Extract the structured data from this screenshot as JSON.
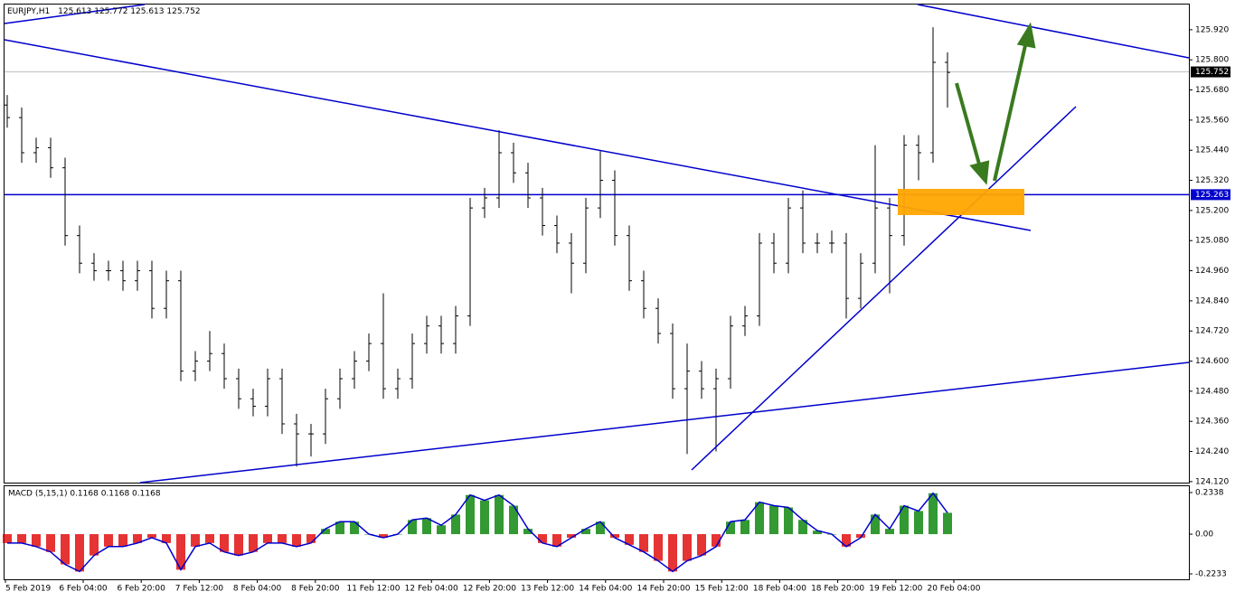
{
  "chart_data": [
    {
      "type": "ohlc",
      "title": "EURJPY,H1",
      "quote": "125.613 125.772 125.613 125.752",
      "categories": [
        "5 Feb 2019",
        "6 Feb 04:00",
        "6 Feb 20:00",
        "7 Feb 12:00",
        "8 Feb 04:00",
        "8 Feb 20:00",
        "11 Feb 12:00",
        "12 Feb 04:00",
        "12 Feb 20:00",
        "13 Feb 12:00",
        "14 Feb 04:00",
        "14 Feb 20:00",
        "15 Feb 12:00",
        "18 Feb 04:00",
        "18 Feb 20:00",
        "19 Feb 12:00",
        "20 Feb 04:00"
      ],
      "open": [
        125.62,
        125.57,
        125.43,
        125.45,
        125.37,
        125.1,
        124.99,
        124.96,
        124.96,
        124.92,
        124.96,
        124.81,
        124.92,
        124.56,
        124.6,
        124.63,
        124.53,
        124.45,
        124.42,
        124.53,
        124.35,
        124.31,
        124.31,
        124.45,
        124.53,
        124.6,
        124.67,
        124.49,
        124.53,
        124.67,
        124.74,
        124.67,
        124.78,
        125.21,
        125.25,
        125.43,
        125.35,
        125.25,
        125.14,
        125.07,
        124.99,
        125.21,
        125.32,
        125.1,
        124.92,
        124.81,
        124.71,
        124.49,
        124.56,
        124.49,
        124.53,
        124.74,
        124.78,
        125.07,
        124.99,
        125.21,
        125.07,
        125.07,
        125.07,
        124.85,
        124.99,
        125.21,
        125.1,
        125.46,
        125.43,
        125.79
      ],
      "high": [
        125.66,
        125.61,
        125.49,
        125.49,
        125.41,
        125.14,
        125.03,
        125.0,
        125.0,
        125.0,
        125.0,
        124.96,
        124.96,
        124.64,
        124.72,
        124.67,
        124.57,
        124.49,
        124.57,
        124.57,
        124.39,
        124.35,
        124.49,
        124.57,
        124.64,
        124.71,
        124.87,
        124.57,
        124.71,
        124.78,
        124.78,
        124.82,
        125.25,
        125.29,
        125.52,
        125.47,
        125.39,
        125.29,
        125.18,
        125.11,
        125.25,
        125.44,
        125.36,
        125.14,
        124.96,
        124.85,
        124.75,
        124.67,
        124.6,
        124.57,
        124.78,
        124.82,
        125.11,
        125.11,
        125.25,
        125.28,
        125.11,
        125.12,
        125.11,
        125.03,
        125.46,
        125.25,
        125.5,
        125.5,
        125.93,
        125.83
      ],
      "low": [
        125.53,
        125.39,
        125.39,
        125.33,
        125.06,
        124.95,
        124.92,
        124.92,
        124.88,
        124.88,
        124.77,
        124.77,
        124.52,
        124.52,
        124.56,
        124.49,
        124.41,
        124.38,
        124.38,
        124.31,
        124.18,
        124.22,
        124.27,
        124.41,
        124.49,
        124.56,
        124.45,
        124.45,
        124.49,
        124.63,
        124.63,
        124.63,
        124.74,
        125.17,
        125.21,
        125.31,
        125.21,
        125.1,
        125.03,
        124.87,
        124.95,
        125.17,
        125.06,
        124.88,
        124.77,
        124.67,
        124.45,
        124.23,
        124.45,
        124.24,
        124.49,
        124.7,
        124.74,
        124.95,
        124.95,
        125.03,
        125.03,
        125.03,
        124.77,
        124.81,
        124.95,
        124.87,
        125.06,
        125.32,
        125.39,
        125.61
      ],
      "close": [
        125.57,
        125.43,
        125.45,
        125.37,
        125.1,
        124.99,
        124.96,
        124.96,
        124.92,
        124.96,
        124.81,
        124.92,
        124.56,
        124.6,
        124.63,
        124.53,
        124.45,
        124.42,
        124.53,
        124.35,
        124.31,
        124.31,
        124.45,
        124.53,
        124.6,
        124.67,
        124.49,
        124.53,
        124.67,
        124.74,
        124.67,
        124.78,
        125.21,
        125.25,
        125.43,
        125.35,
        125.25,
        125.14,
        125.07,
        124.99,
        125.21,
        125.32,
        125.1,
        124.92,
        124.81,
        124.71,
        124.49,
        124.56,
        124.49,
        124.53,
        124.74,
        124.78,
        125.07,
        124.99,
        125.21,
        125.07,
        125.07,
        125.07,
        124.85,
        124.99,
        125.21,
        125.1,
        125.46,
        125.43,
        125.79,
        125.75
      ],
      "color": "#000000",
      "ylim": [
        124.116,
        126.024
      ],
      "yticks": [
        {
          "value": 125.92,
          "label": "125.920"
        },
        {
          "value": 125.8,
          "label": "125.800"
        },
        {
          "value": 125.68,
          "label": "125.680"
        },
        {
          "value": 125.56,
          "label": "125.560"
        },
        {
          "value": 125.44,
          "label": "125.440"
        },
        {
          "value": 125.32,
          "label": "125.320"
        },
        {
          "value": 125.2,
          "label": "125.200"
        },
        {
          "value": 125.08,
          "label": "125.080"
        },
        {
          "value": 124.96,
          "label": "124.960"
        },
        {
          "value": 124.84,
          "label": "124.840"
        },
        {
          "value": 124.72,
          "label": "124.720"
        },
        {
          "value": 124.6,
          "label": "124.600"
        },
        {
          "value": 124.48,
          "label": "124.480"
        },
        {
          "value": 124.36,
          "label": "124.360"
        },
        {
          "value": 124.24,
          "label": "124.240"
        },
        {
          "value": 124.12,
          "label": "124.120"
        }
      ],
      "bid": 125.752,
      "level": 125.263,
      "level_color": "#0000cc"
    },
    {
      "type": "bar",
      "title": "MACD (5,15,1) 0.1168 0.1168 0.1168",
      "values": [
        -0.05,
        -0.05,
        -0.07,
        -0.1,
        -0.17,
        -0.21,
        -0.12,
        -0.07,
        -0.07,
        -0.05,
        -0.02,
        -0.05,
        -0.2,
        -0.07,
        -0.05,
        -0.1,
        -0.12,
        -0.1,
        -0.05,
        -0.05,
        -0.07,
        -0.05,
        0.03,
        0.07,
        0.07,
        0.0,
        -0.02,
        0.0,
        0.08,
        0.09,
        0.05,
        0.11,
        0.22,
        0.19,
        0.22,
        0.16,
        0.03,
        -0.05,
        -0.07,
        -0.02,
        0.03,
        0.07,
        -0.02,
        -0.06,
        -0.1,
        -0.15,
        -0.21,
        -0.15,
        -0.12,
        -0.07,
        0.07,
        0.08,
        0.18,
        0.16,
        0.15,
        0.08,
        0.02,
        0.0,
        -0.07,
        -0.02,
        0.11,
        0.03,
        0.16,
        0.13,
        0.23,
        0.12
      ],
      "positive_color": "#008000",
      "negative_color": "#e00000",
      "line_color": "#0000cc",
      "ylim": [
        -0.2487,
        0.2693
      ],
      "yticks": [
        0.2338,
        {
          "value": 0,
          "label": "0.00"
        },
        -0.2233
      ]
    }
  ]
}
